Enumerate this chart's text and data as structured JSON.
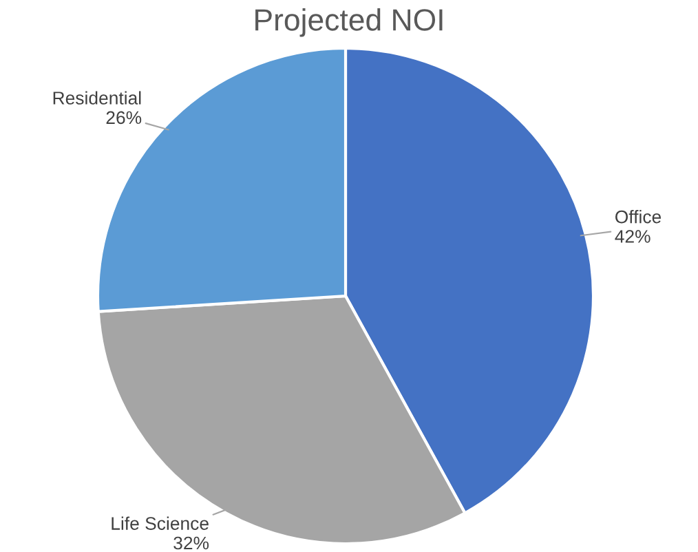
{
  "chart_data": {
    "type": "pie",
    "title": "Projected NOI",
    "categories": [
      "Office",
      "Life Science",
      "Residential"
    ],
    "values": [
      42,
      32,
      26
    ],
    "colors": [
      "#4472c4",
      "#a5a5a5",
      "#5b9bd5"
    ],
    "value_labels": [
      "42%",
      "32%",
      "26%"
    ],
    "legend": false
  }
}
